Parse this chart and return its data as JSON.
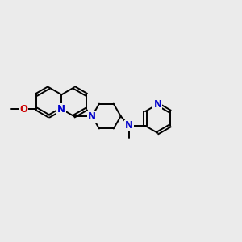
{
  "background_color": "#ebebeb",
  "bond_color": "#000000",
  "nitrogen_color": "#0000cc",
  "oxygen_color": "#cc0000",
  "bond_width": 1.4,
  "font_size_atom": 8.5,
  "fig_width": 3.0,
  "fig_height": 3.0,
  "dpi": 100,
  "ring_r": 0.6,
  "xlim": [
    0,
    10
  ],
  "ylim": [
    0,
    10
  ]
}
